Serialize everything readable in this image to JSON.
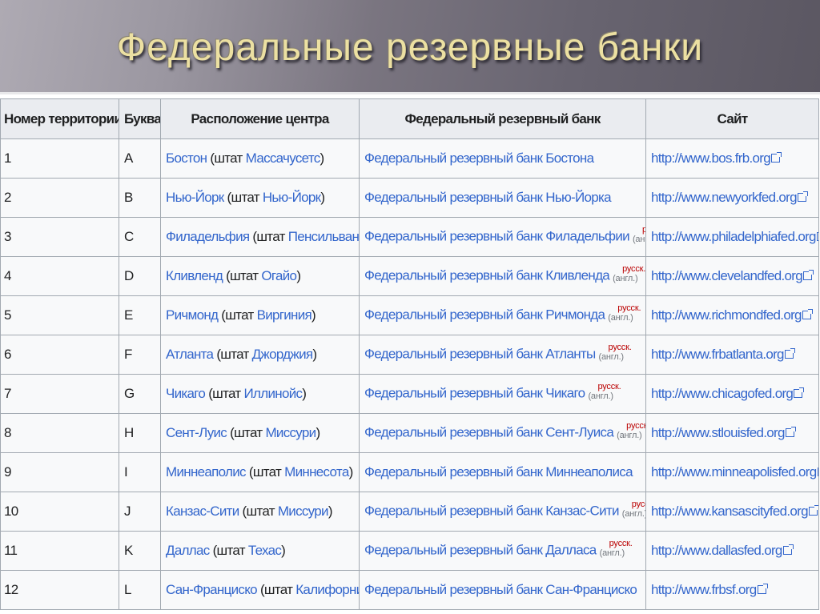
{
  "slide": {
    "title": "Федеральные резервные банки"
  },
  "table": {
    "headers": [
      "Номер территории",
      "Буква",
      "Расположение центра",
      "Федеральный резервный банк",
      "Сайт"
    ],
    "annotation": {
      "ru": "русск.",
      "en": "(англ.)"
    },
    "rows": [
      {
        "num": "1",
        "letter": "A",
        "city": "Бостон",
        "state_prefix": " (штат ",
        "state": "Массачусетс",
        "state_suffix": ")",
        "bank": "Федеральный резервный банк Бостона",
        "annotated": false,
        "site": "http://www.bos.frb.org"
      },
      {
        "num": "2",
        "letter": "B",
        "city": "Нью-Йорк",
        "state_prefix": " (штат ",
        "state": "Нью-Йорк",
        "state_suffix": ")",
        "bank": "Федеральный резервный банк Нью-Йорка",
        "annotated": false,
        "site": "http://www.newyorkfed.org"
      },
      {
        "num": "3",
        "letter": "C",
        "city": "Филадельфия",
        "state_prefix": " (штат ",
        "state": "Пенсильвания",
        "state_suffix": ")",
        "bank": "Федеральный резервный банк Филадельфии",
        "annotated": true,
        "site": "http://www.philadelphiafed.org"
      },
      {
        "num": "4",
        "letter": "D",
        "city": "Кливленд",
        "state_prefix": " (штат ",
        "state": "Огайо",
        "state_suffix": ")",
        "bank": "Федеральный резервный банк Кливленда",
        "annotated": true,
        "site": "http://www.clevelandfed.org"
      },
      {
        "num": "5",
        "letter": "E",
        "city": "Ричмонд",
        "state_prefix": " (штат ",
        "state": "Виргиния",
        "state_suffix": ")",
        "bank": "Федеральный резервный банк Ричмонда",
        "annotated": true,
        "site": "http://www.richmondfed.org"
      },
      {
        "num": "6",
        "letter": "F",
        "city": "Атланта",
        "state_prefix": " (штат ",
        "state": "Джорджия",
        "state_suffix": ")",
        "bank": "Федеральный резервный банк Атланты",
        "annotated": true,
        "site": "http://www.frbatlanta.org"
      },
      {
        "num": "7",
        "letter": "G",
        "city": "Чикаго",
        "state_prefix": " (штат ",
        "state": "Иллинойс",
        "state_suffix": ")",
        "bank": "Федеральный резервный банк Чикаго",
        "annotated": true,
        "site": "http://www.chicagofed.org"
      },
      {
        "num": "8",
        "letter": "H",
        "city": "Сент-Луис",
        "state_prefix": " (штат ",
        "state": "Миссури",
        "state_suffix": ")",
        "bank": "Федеральный резервный банк Сент-Луиса",
        "annotated": true,
        "site": "http://www.stlouisfed.org"
      },
      {
        "num": "9",
        "letter": "I",
        "city": "Миннеаполис",
        "state_prefix": " (штат ",
        "state": "Миннесота",
        "state_suffix": ")",
        "bank": "Федеральный резервный банк Миннеаполиса",
        "annotated": false,
        "site": "http://www.minneapolisfed.org"
      },
      {
        "num": "10",
        "letter": "J",
        "city": "Канзас-Сити",
        "state_prefix": " (штат ",
        "state": "Миссури",
        "state_suffix": ")",
        "bank": "Федеральный резервный банк Канзас-Сити",
        "annotated": true,
        "site": "http://www.kansascityfed.org"
      },
      {
        "num": "11",
        "letter": "K",
        "city": "Даллас",
        "state_prefix": " (штат ",
        "state": "Техас",
        "state_suffix": ")",
        "bank": "Федеральный резервный банк Далласа",
        "annotated": true,
        "site": "http://www.dallasfed.org"
      },
      {
        "num": "12",
        "letter": "L",
        "city": "Сан-Франциско",
        "state_prefix": " (штат ",
        "state": "Калифорния",
        "state_suffix": ")",
        "bank": "Федеральный резервный банк Сан-Франциско",
        "annotated": false,
        "site": "http://www.frbsf.org"
      }
    ]
  },
  "colors": {
    "link": "#3366cc",
    "annotation_ru": "#ba0000",
    "annotation_en": "#72777d",
    "header_bg": "#eaecf0",
    "cell_bg": "#f8f9fa",
    "title": "#ece0a2"
  },
  "icons": {
    "site_link": "external-link-icon"
  }
}
